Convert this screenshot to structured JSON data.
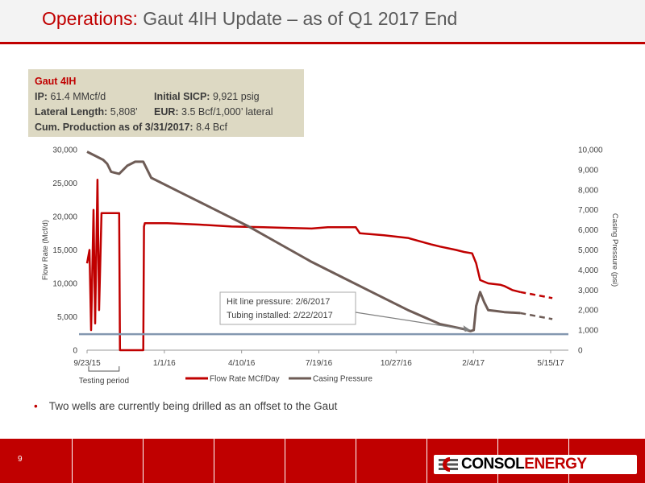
{
  "slide": {
    "title_accent": "Operations:",
    "title_rest": "Gaut 4IH Update – as of Q1 2017 End",
    "page_number": "9"
  },
  "infobox": {
    "heading": "Gaut 4IH",
    "ip_label": "IP:",
    "ip_value": "61.4 MMcf/d",
    "sicp_label": "Initial SICP:",
    "sicp_value": "9,921 psig",
    "lateral_label": "Lateral Length:",
    "lateral_value": "5,808’",
    "eur_label": "EUR:",
    "eur_value": "3.5 Bcf/1,000’ lateral",
    "cum_label": "Cum. Production as of 3/31/2017:",
    "cum_value": "8.4 Bcf"
  },
  "bullet": "Two wells are currently being drilled as an offset to the Gaut",
  "logo": {
    "part1": "CONSOL",
    "part2": "ENERGY",
    "mark_icon": "consol-logo-icon"
  },
  "colors": {
    "accent": "#c00000",
    "pressure": "#6e5c56",
    "line": "#8497b0"
  },
  "chart_data": {
    "type": "line",
    "xlabel_ticks": [
      "9/23/15",
      "1/1/16",
      "4/10/16",
      "7/19/16",
      "10/27/16",
      "2/4/17",
      "5/15/17"
    ],
    "x_range_days": [
      0,
      600
    ],
    "ylabel_left": "Flow Rate (Mcf/d)",
    "ylabel_right": "Casing Pressure (psi)",
    "ylim_left": [
      0,
      30000
    ],
    "ylim_right": [
      0,
      10000
    ],
    "yticks_left": [
      "0",
      "5,000",
      "10,000",
      "15,000",
      "20,000",
      "25,000",
      "30,000"
    ],
    "yticks_right": [
      "0",
      "1,000",
      "2,000",
      "3,000",
      "4,000",
      "5,000",
      "6,000",
      "7,000",
      "8,000",
      "9,000",
      "10,000"
    ],
    "grid": false,
    "legend_position": "bottom",
    "series": [
      {
        "name": "Flow Rate MCf/Day",
        "axis": "left",
        "color": "#c00000",
        "x": [
          0,
          3,
          5,
          8,
          10,
          13,
          15,
          18,
          20,
          22,
          25,
          28,
          30,
          33,
          36,
          40,
          41,
          70,
          71,
          72,
          78,
          100,
          140,
          180,
          220,
          250,
          280,
          300,
          335,
          340,
          370,
          400,
          430,
          440,
          460,
          470,
          480,
          485,
          490,
          500,
          515,
          520,
          530,
          540
        ],
        "y": [
          13000,
          15000,
          3000,
          21000,
          4000,
          25500,
          6000,
          20500,
          20500,
          20500,
          20500,
          20500,
          20500,
          20500,
          20500,
          20500,
          0,
          0,
          18500,
          19000,
          19000,
          19000,
          18800,
          18500,
          18400,
          18300,
          18200,
          18400,
          18400,
          17500,
          17200,
          16800,
          15800,
          15500,
          15000,
          14700,
          14500,
          13000,
          10500,
          10000,
          9800,
          9600,
          9000,
          8700
        ]
      },
      {
        "name": "Flow Rate MCf/Day (forecast)",
        "axis": "left",
        "dashed": true,
        "color": "#c00000",
        "x": [
          540,
          580
        ],
        "y": [
          8700,
          7800
        ]
      },
      {
        "name": "Casing Pressure",
        "axis": "right",
        "color": "#6e5c56",
        "x": [
          0,
          5,
          10,
          15,
          20,
          25,
          30,
          40,
          45,
          50,
          60,
          70,
          80,
          120,
          160,
          200,
          240,
          280,
          320,
          360,
          400,
          440,
          470,
          478,
          482,
          485,
          490,
          495,
          500,
          510,
          520,
          540
        ],
        "y": [
          9900,
          9800,
          9700,
          9600,
          9500,
          9300,
          8900,
          8800,
          9000,
          9200,
          9400,
          9400,
          8600,
          7800,
          7000,
          6200,
          5300,
          4400,
          3600,
          2800,
          2000,
          1300,
          1050,
          950,
          1000,
          2200,
          2900,
          2400,
          2000,
          1950,
          1900,
          1850
        ]
      },
      {
        "name": "Casing Pressure (forecast)",
        "axis": "right",
        "dashed": true,
        "color": "#6e5c56",
        "x": [
          540,
          580
        ],
        "y": [
          1850,
          1550
        ]
      },
      {
        "name": "Hit line pressure",
        "axis": "right",
        "color": "#8497b0",
        "x": [
          -10,
          600
        ],
        "y": [
          800,
          800
        ]
      }
    ],
    "annotations": {
      "callout_line1": "Hit line pressure: 2/6/2017",
      "callout_line2": "Tubing installed: 2/22/2017",
      "testing_label": "Testing period"
    }
  }
}
